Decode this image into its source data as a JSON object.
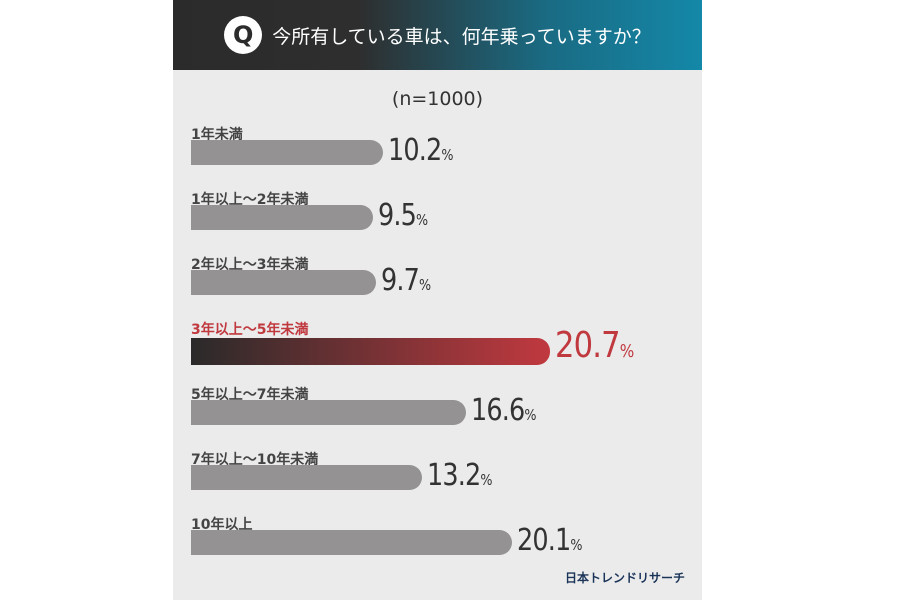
{
  "header": {
    "icon": "Q",
    "title": "今所有している車は、何年乗っていますか？"
  },
  "colors": {
    "bar": "#949292",
    "highlight": "#c0393f",
    "header_dark": "#2b2b2b",
    "header_teal": "#1488a8"
  },
  "chart_data": {
    "type": "bar",
    "orientation": "horizontal",
    "subtitle": "(n=1000)",
    "categories": [
      "1年未満",
      "1年以上～2年未満",
      "2年以上～3年未満",
      "3年以上～5年未満",
      "5年以上～7年未満",
      "7年以上～10年未満",
      "10年以上"
    ],
    "values": [
      10.2,
      9.5,
      9.7,
      20.7,
      16.6,
      13.2,
      20.1
    ],
    "value_labels": [
      "10.2",
      "9.5",
      "9.7",
      "20.7",
      "16.6",
      "13.2",
      "20.1"
    ],
    "unit": "%",
    "highlight_index": 3
  },
  "logo": "日本トレンドリサーチ"
}
